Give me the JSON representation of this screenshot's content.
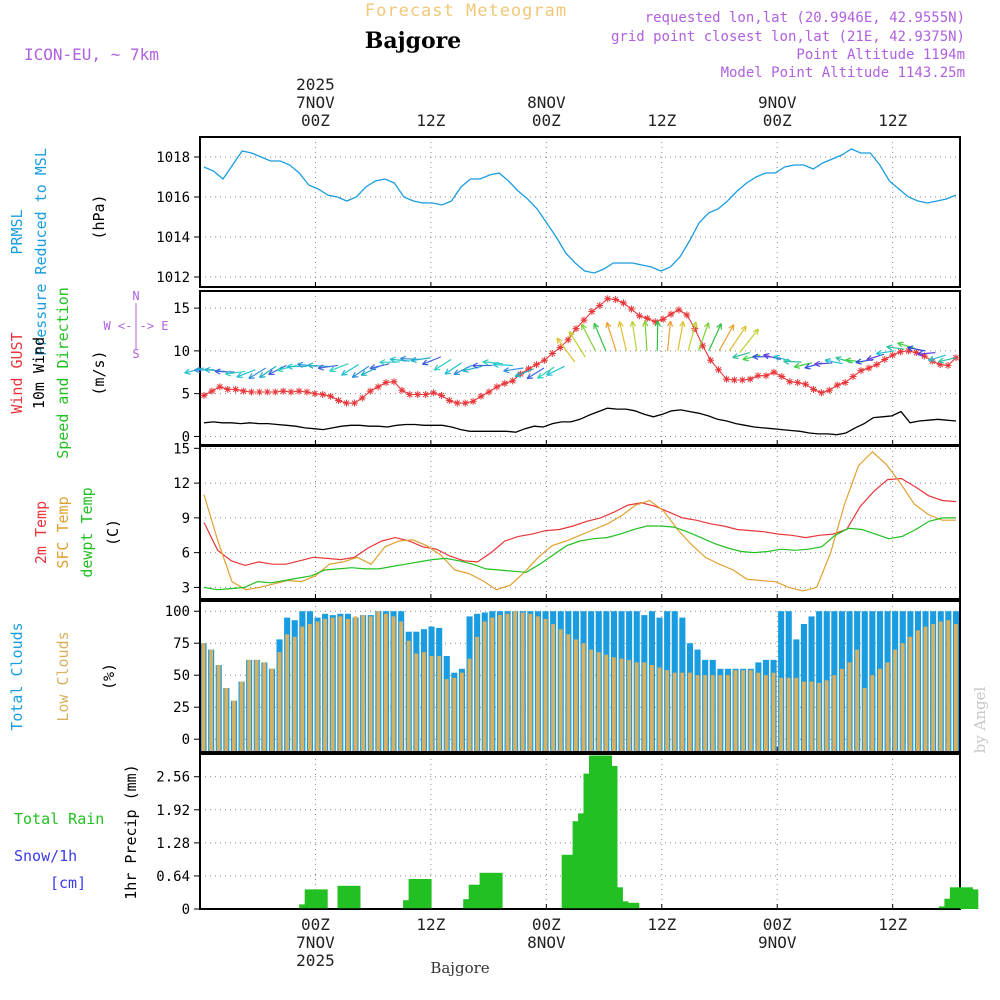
{
  "header": {
    "title": "Forecast Meteogram",
    "location": "Bajgore",
    "model": "ICON-EU, ~ 7km",
    "requested": "requested lon,lat (20.9946E, 42.9555N)",
    "gridpoint": "grid point closest lon,lat (21E, 42.9375N)",
    "point_alt": "Point Altitude 1194m",
    "model_alt": "Model Point Altitude 1143.25m",
    "footer": "Bajgore",
    "watermark": "by Angel"
  },
  "colors": {
    "pressure": "#1a9de0",
    "gust": "#e8363a",
    "wind10": "#000000",
    "t2m": "#e8363a",
    "tsfc": "#e0a030",
    "dew": "#22c022",
    "total_clouds": "#1a9de0",
    "low_clouds": "#d8b060",
    "rain": "#22c022",
    "snow_label": "#3a3aee",
    "info": "#b060e0",
    "title": "#f0c878"
  },
  "time_axis": {
    "top_ticks": [
      {
        "hour": 12,
        "lines": [
          "2025",
          "7NOV",
          "00Z"
        ]
      },
      {
        "hour": 24,
        "lines": [
          "12Z"
        ]
      },
      {
        "hour": 36,
        "lines": [
          "8NOV",
          "00Z"
        ]
      },
      {
        "hour": 48,
        "lines": [
          "12Z"
        ]
      },
      {
        "hour": 60,
        "lines": [
          "9NOV",
          "00Z"
        ]
      },
      {
        "hour": 72,
        "lines": [
          "12Z"
        ]
      }
    ],
    "bottom_ticks": [
      {
        "hour": 12,
        "lines": [
          "00Z",
          "7NOV",
          "2025"
        ]
      },
      {
        "hour": 24,
        "lines": [
          "12Z"
        ]
      },
      {
        "hour": 36,
        "lines": [
          "00Z",
          "8NOV"
        ]
      },
      {
        "hour": 48,
        "lines": [
          "12Z"
        ]
      },
      {
        "hour": 60,
        "lines": [
          "00Z",
          "9NOV"
        ]
      },
      {
        "hour": 72,
        "lines": [
          "12Z"
        ]
      }
    ]
  },
  "chart_data": [
    {
      "type": "line",
      "title": "PRMSL Pressure Reduced to MSL",
      "ylabel_lines": [
        "PRMSL",
        "Pressure Reduced to MSL"
      ],
      "unit": "(hPa)",
      "ylim": [
        1011.5,
        1019.0
      ],
      "yticks": [
        "1012",
        "1014",
        "1016",
        "1018"
      ],
      "series": [
        {
          "name": "PRMSL",
          "values": [
            1017.5,
            1017.3,
            1016.9,
            1017.6,
            1018.3,
            1018.2,
            1018.0,
            1017.8,
            1017.8,
            1017.6,
            1017.2,
            1016.6,
            1016.4,
            1016.1,
            1016.0,
            1015.8,
            1016.0,
            1016.5,
            1016.8,
            1016.9,
            1016.7,
            1016.0,
            1015.8,
            1015.7,
            1015.7,
            1015.6,
            1015.8,
            1016.5,
            1016.9,
            1016.9,
            1017.1,
            1017.2,
            1016.8,
            1016.3,
            1015.9,
            1015.4,
            1014.7,
            1014.0,
            1013.2,
            1012.7,
            1012.3,
            1012.2,
            1012.4,
            1012.7,
            1012.7,
            1012.7,
            1012.6,
            1012.5,
            1012.3,
            1012.5,
            1013.0,
            1013.8,
            1014.7,
            1015.2,
            1015.4,
            1015.8,
            1016.3,
            1016.7,
            1017.0,
            1017.2,
            1017.2,
            1017.5,
            1017.6,
            1017.6,
            1017.4,
            1017.7,
            1017.9,
            1018.1,
            1018.4,
            1018.2,
            1018.2,
            1017.6,
            1016.8,
            1016.4,
            1016.0,
            1015.8,
            1015.7,
            1015.8,
            1015.9,
            1016.1
          ]
        }
      ]
    },
    {
      "type": "line",
      "title": "Wind GUST / 10m Wind Speed and Direction",
      "ylabel_lines": [
        "Wind GUST",
        "10m Wind",
        "Speed and Direction"
      ],
      "unit": "(m/s)",
      "compass": [
        "N",
        "W <-|-> E",
        "S"
      ],
      "ylim": [
        -1,
        17
      ],
      "yticks": [
        "0",
        "5",
        "10",
        "15"
      ],
      "series": [
        {
          "name": "Wind GUST",
          "values": [
            4.8,
            5.3,
            5.8,
            5.5,
            5.5,
            5.3,
            5.2,
            5.2,
            5.2,
            5.2,
            5.3,
            5.2,
            5.3,
            5.2,
            5.0,
            4.9,
            4.7,
            4.2,
            3.9,
            3.9,
            4.5,
            5.3,
            5.8,
            6.3,
            6.4,
            5.4,
            4.9,
            4.9,
            4.9,
            5.1,
            4.8,
            4.2,
            3.9,
            3.9,
            4.1,
            4.7,
            5.2,
            5.8,
            6.2,
            6.5,
            7.3,
            7.9,
            8.4,
            8.9,
            9.7,
            10.4,
            11.3,
            12.6,
            13.6,
            14.6,
            15.3,
            16.1,
            16.0,
            15.6,
            14.9,
            14.1,
            13.8,
            13.4,
            13.7,
            14.3,
            14.8,
            14.2,
            12.6,
            10.6,
            8.9,
            7.8,
            6.7,
            6.6,
            6.6,
            6.7,
            7.1,
            7.1,
            7.5,
            7.0,
            6.4,
            6.3,
            6.1,
            5.5,
            5.1,
            5.4,
            6.0,
            6.3,
            7.0,
            7.7,
            8.0,
            8.4,
            9.0,
            9.5,
            9.9,
            10.0,
            9.8,
            9.4,
            8.8,
            8.4,
            8.3,
            9.2
          ]
        },
        {
          "name": "10m Wind",
          "values": [
            1.6,
            1.7,
            1.6,
            1.6,
            1.5,
            1.6,
            1.5,
            1.5,
            1.4,
            1.3,
            1.2,
            1.0,
            0.9,
            0.8,
            1.0,
            1.2,
            1.3,
            1.3,
            1.2,
            1.2,
            1.1,
            1.3,
            1.4,
            1.4,
            1.3,
            1.3,
            1.3,
            1.1,
            0.8,
            0.6,
            0.6,
            0.6,
            0.6,
            0.6,
            0.5,
            0.9,
            1.2,
            1.1,
            1.5,
            1.7,
            1.7,
            2.0,
            2.5,
            2.9,
            3.3,
            3.2,
            3.2,
            3.0,
            2.6,
            2.3,
            2.6,
            3.0,
            3.1,
            2.9,
            2.7,
            2.4,
            2.0,
            1.8,
            1.5,
            1.3,
            1.1,
            1.0,
            0.9,
            0.8,
            0.7,
            0.6,
            0.4,
            0.3,
            0.3,
            0.2,
            0.4,
            1.0,
            1.5,
            2.2,
            2.3,
            2.4,
            2.9,
            1.6,
            1.8,
            1.9,
            2.0,
            1.9,
            1.8
          ]
        },
        {
          "name": "Wind arrows",
          "values": [
            8.0,
            7.8,
            7.6,
            7.5,
            7.6,
            7.8,
            8.0,
            8.2,
            8.3,
            8.3,
            8.2,
            8.2,
            8.2,
            8.3,
            8.5,
            8.4,
            8.2,
            8.2,
            8.5,
            8.7,
            8.8,
            9.0,
            9.2,
            9.3,
            9.0,
            8.6,
            8.3,
            8.2,
            8.3,
            8.5,
            8.3,
            8.0,
            7.9,
            8.0,
            8.1,
            8.2,
            8.7,
            9.3,
            10.0,
            10.0,
            10.0,
            10.0,
            10.0,
            10.0,
            10.0,
            10.0,
            10.0,
            10.0,
            10.0,
            10.0,
            10.0,
            10.0,
            9.8,
            9.8,
            9.5,
            9.3,
            9.0,
            8.8,
            8.7,
            8.6,
            8.6,
            8.6,
            8.5,
            8.6,
            8.7,
            9.0,
            9.6,
            10.0,
            10.2,
            10.3,
            10.0,
            9.8,
            9.5,
            9.2
          ]
        }
      ]
    },
    {
      "type": "line",
      "title": "2m Temp / SFC Temp / dewpt Temp",
      "ylabel_lines": [
        "2m Temp",
        "SFC Temp",
        "dewpt Temp"
      ],
      "unit": "(C)",
      "ylim": [
        2.0,
        15.2
      ],
      "yticks": [
        "3",
        "6",
        "9",
        "12",
        "15"
      ],
      "series": [
        {
          "name": "2m Temp",
          "values": [
            8.6,
            6.2,
            5.3,
            4.9,
            5.2,
            5.0,
            5.0,
            5.3,
            5.6,
            5.5,
            5.4,
            5.6,
            6.4,
            7.0,
            7.3,
            7.0,
            6.5,
            6.3,
            5.7,
            5.3,
            5.2,
            6.0,
            7.0,
            7.4,
            7.6,
            7.9,
            8.0,
            8.3,
            8.7,
            9.0,
            9.5,
            10.1,
            10.3,
            10.0,
            9.5,
            9.0,
            8.8,
            8.5,
            8.3,
            8.0,
            7.9,
            7.8,
            7.6,
            7.5,
            7.3,
            7.5,
            7.6,
            8.0,
            10.0,
            11.3,
            12.3,
            12.4,
            11.7,
            10.9,
            10.5,
            10.4
          ]
        },
        {
          "name": "SFC Temp",
          "values": [
            11.0,
            7.0,
            3.5,
            2.8,
            3.0,
            3.3,
            3.6,
            3.5,
            4.0,
            5.0,
            5.2,
            5.6,
            5.0,
            6.5,
            7.0,
            7.1,
            6.6,
            5.8,
            4.5,
            4.2,
            3.6,
            2.8,
            3.2,
            4.3,
            5.6,
            6.6,
            7.0,
            7.5,
            8.0,
            8.5,
            9.2,
            10.1,
            10.5,
            9.6,
            8.0,
            6.7,
            5.6,
            5.0,
            4.5,
            3.7,
            3.6,
            3.5,
            3.0,
            2.7,
            3.0,
            6.0,
            10.2,
            13.5,
            14.7,
            13.6,
            12.0,
            10.2,
            9.3,
            8.8,
            8.8
          ]
        },
        {
          "name": "dewpt Temp",
          "values": [
            3.0,
            2.8,
            2.9,
            3.0,
            3.5,
            3.4,
            3.6,
            3.8,
            4.0,
            4.5,
            4.6,
            4.7,
            4.6,
            4.6,
            4.8,
            5.0,
            5.2,
            5.4,
            5.5,
            5.3,
            5.0,
            4.6,
            4.5,
            4.4,
            4.3,
            5.0,
            5.8,
            6.6,
            7.0,
            7.2,
            7.3,
            7.6,
            8.0,
            8.3,
            8.3,
            8.2,
            7.8,
            7.3,
            6.8,
            6.4,
            6.1,
            6.0,
            6.1,
            6.3,
            6.2,
            6.3,
            6.5,
            7.5,
            8.1,
            8.0,
            7.6,
            7.2,
            7.4,
            8.0,
            8.7,
            9.0,
            9.0
          ]
        }
      ]
    },
    {
      "type": "bar",
      "title": "Total Clouds / Low Clouds",
      "ylabel_lines": [
        "Total Clouds",
        "Low Clouds"
      ],
      "unit": "(%)",
      "ylim": [
        -10,
        108
      ],
      "yticks": [
        "0",
        "25",
        "50",
        "75",
        "100"
      ],
      "series": [
        {
          "name": "Total Clouds",
          "values": [
            75,
            70,
            58,
            40,
            30,
            45,
            62,
            62,
            60,
            55,
            78,
            95,
            93,
            100,
            100,
            95,
            98,
            97,
            98,
            98,
            95,
            97,
            97,
            100,
            100,
            100,
            100,
            84,
            84,
            86,
            88,
            87,
            65,
            52,
            55,
            96,
            98,
            99,
            100,
            100,
            100,
            100,
            100,
            100,
            100,
            100,
            100,
            100,
            100,
            100,
            100,
            100,
            100,
            100,
            100,
            100,
            100,
            100,
            97,
            100,
            95,
            100,
            100,
            95,
            75,
            70,
            62,
            62,
            55,
            55,
            55,
            55,
            55,
            60,
            62,
            62,
            100,
            100,
            78,
            90,
            96,
            100,
            100,
            100,
            100,
            100,
            100,
            100,
            100,
            100,
            100,
            100,
            100,
            100,
            100,
            100,
            100,
            100,
            100,
            100
          ]
        },
        {
          "name": "Low Clouds",
          "values": [
            75,
            70,
            58,
            40,
            30,
            45,
            62,
            62,
            60,
            55,
            68,
            82,
            80,
            88,
            90,
            92,
            94,
            95,
            96,
            94,
            96,
            97,
            96,
            100,
            98,
            96,
            92,
            77,
            67,
            68,
            65,
            65,
            47,
            48,
            52,
            63,
            80,
            92,
            95,
            97,
            98,
            100,
            99,
            98,
            96,
            94,
            90,
            86,
            82,
            78,
            75,
            70,
            68,
            66,
            64,
            63,
            62,
            60,
            60,
            58,
            56,
            54,
            52,
            52,
            52,
            50,
            50,
            50,
            50,
            50,
            54,
            54,
            54,
            52,
            50,
            52,
            48,
            48,
            48,
            45,
            45,
            44,
            46,
            50,
            55,
            60,
            70,
            40,
            50,
            55,
            60,
            70,
            75,
            80,
            85,
            88,
            90,
            92,
            93,
            90
          ]
        }
      ]
    },
    {
      "type": "bar",
      "title": "Total Rain / Snow/1h [cm] / 1hr Precip (mm)",
      "ylabel_lines": [
        "Total  Rain",
        "Snow/1h",
        "[cm]"
      ],
      "yaxis_title": "1hr Precip (mm)",
      "ylim": [
        0.0,
        3.0
      ],
      "yticks": [
        "0",
        "0.64",
        "1.28",
        "1.92",
        "2.56"
      ],
      "series": [
        {
          "name": "Total Rain",
          "values": [
            0,
            0,
            0,
            0,
            0,
            0,
            0,
            0,
            0,
            0,
            0,
            0,
            0,
            0,
            0,
            0,
            0,
            0,
            0.09,
            0.38,
            0,
            0,
            0,
            0,
            0,
            0.45,
            0,
            0,
            0,
            0,
            0,
            0,
            0,
            0,
            0,
            0,
            0,
            0.17,
            0.58,
            0,
            0,
            0,
            0,
            0,
            0,
            0,
            0,
            0,
            0.19,
            0.47,
            0.43,
            0.7,
            0,
            0,
            0,
            0,
            0,
            0,
            0,
            0,
            0,
            0,
            0,
            0,
            0,
            0,
            1.05,
            0.28,
            1.7,
            1.85,
            2.62,
            2.97,
            2.77,
            0.42,
            0.15,
            0.08,
            0.12,
            0,
            0,
            0,
            0,
            0,
            0,
            0,
            0,
            0,
            0,
            0,
            0,
            0,
            0,
            0,
            0,
            0,
            0,
            0,
            0,
            0,
            0,
            0,
            0,
            0,
            0,
            0,
            0,
            0,
            0,
            0,
            0,
            0,
            0,
            0,
            0,
            0,
            0,
            0,
            0,
            0,
            0,
            0,
            0,
            0,
            0,
            0,
            0,
            0,
            0,
            0,
            0,
            0,
            0,
            0,
            0,
            0,
            0,
            0.05,
            0.2,
            0.42,
            0.38
          ]
        }
      ]
    }
  ]
}
